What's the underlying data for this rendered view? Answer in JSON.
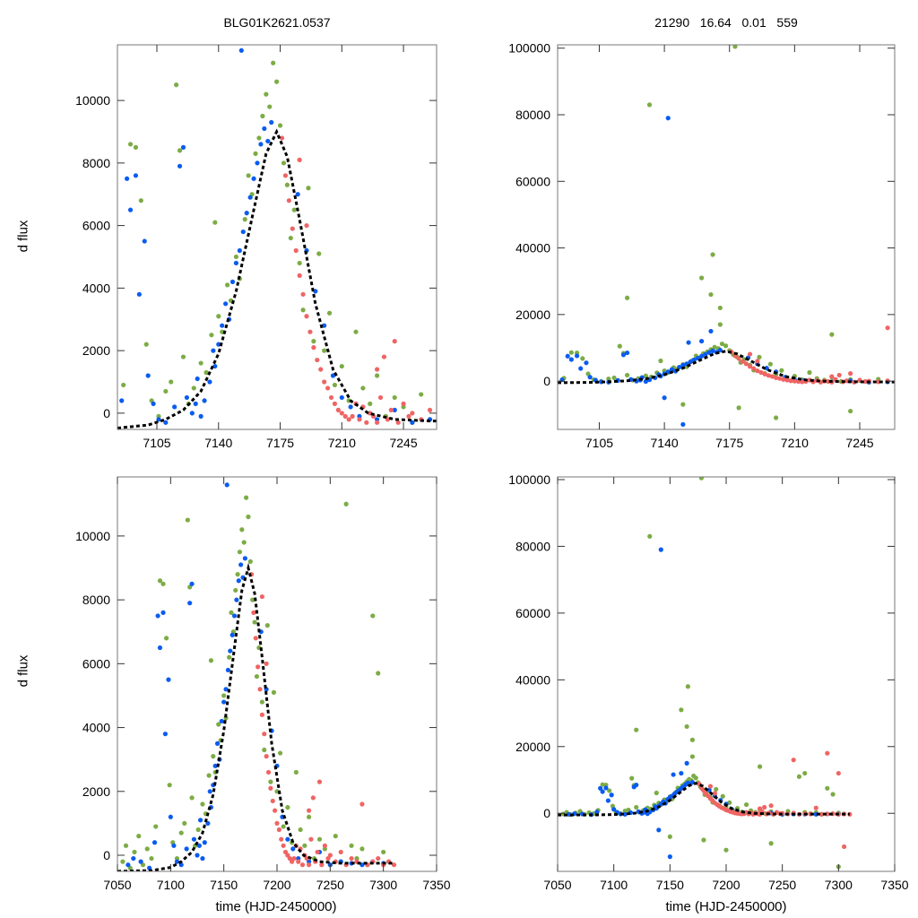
{
  "chart_data": {
    "type": "scatter",
    "titles": {
      "left": "BLG01K2621.0537",
      "right": "21290   16.64   0.01   559"
    },
    "ylabel": "d flux",
    "xlabel": "time (HJD-2450000)",
    "colors": {
      "green": "#7cac45",
      "blue": "#0a5cf0",
      "red": "#f06464",
      "model": "#000000"
    },
    "panels": [
      {
        "name": "top-left",
        "xlim": [
          7082.6,
          7263.8
        ],
        "ylim": [
          -520,
          11780
        ],
        "xticks": [
          7105,
          7140,
          7175,
          7210,
          7245
        ],
        "yticks": [
          0,
          2000,
          4000,
          6000,
          8000,
          10000
        ]
      },
      {
        "name": "top-right",
        "xlim": [
          7082.6,
          7263.8
        ],
        "ylim": [
          -14500,
          101000
        ],
        "xticks": [
          7105,
          7140,
          7175,
          7210,
          7245
        ],
        "yticks": [
          0,
          20000,
          40000,
          60000,
          80000,
          100000
        ]
      },
      {
        "name": "bottom-left",
        "xlim": [
          7050,
          7350
        ],
        "ylim": [
          -505,
          11850
        ],
        "xticks": [
          7050,
          7100,
          7150,
          7200,
          7250,
          7300,
          7350
        ],
        "yticks": [
          0,
          2000,
          4000,
          6000,
          8000,
          10000
        ]
      },
      {
        "name": "bottom-right",
        "xlim": [
          7050,
          7350
        ],
        "ylim": [
          -17400,
          100800
        ],
        "xticks": [
          7050,
          7100,
          7150,
          7200,
          7250,
          7300,
          7350
        ],
        "yticks": [
          0,
          20000,
          40000,
          60000,
          80000,
          100000
        ]
      }
    ],
    "model": [
      [
        7050,
        -500
      ],
      [
        7082,
        -480
      ],
      [
        7100,
        -380
      ],
      [
        7110,
        -200
      ],
      [
        7120,
        100
      ],
      [
        7130,
        700
      ],
      [
        7140,
        1900
      ],
      [
        7150,
        3900
      ],
      [
        7160,
        6500
      ],
      [
        7167,
        8300
      ],
      [
        7173,
        9000
      ],
      [
        7179,
        8200
      ],
      [
        7186,
        6200
      ],
      [
        7195,
        3500
      ],
      [
        7205,
        1400
      ],
      [
        7215,
        400
      ],
      [
        7225,
        0
      ],
      [
        7240,
        -200
      ],
      [
        7260,
        -250
      ],
      [
        7310,
        -250
      ]
    ],
    "series": [
      {
        "name": "green",
        "points": [
          [
            7055,
            -200
          ],
          [
            7058,
            300
          ],
          [
            7062,
            -400
          ],
          [
            7066,
            100
          ],
          [
            7070,
            600
          ],
          [
            7074,
            -300
          ],
          [
            7078,
            200
          ],
          [
            7082,
            -100
          ],
          [
            7086,
            900
          ],
          [
            7090,
            8600
          ],
          [
            7093,
            8500
          ],
          [
            7096,
            6800
          ],
          [
            7099,
            2200
          ],
          [
            7102,
            400
          ],
          [
            7106,
            -100
          ],
          [
            7110,
            700
          ],
          [
            7113,
            1000
          ],
          [
            7116,
            10500
          ],
          [
            7118,
            8400
          ],
          [
            7120,
            1800
          ],
          [
            7123,
            300
          ],
          [
            7126,
            800
          ],
          [
            7130,
            1600
          ],
          [
            7133,
            1300
          ],
          [
            7136,
            2500
          ],
          [
            7138,
            6100
          ],
          [
            7140,
            3100
          ],
          [
            7142,
            2600
          ],
          [
            7145,
            4100
          ],
          [
            7147,
            3600
          ],
          [
            7150,
            5000
          ],
          [
            7152,
            4300
          ],
          [
            7155,
            6200
          ],
          [
            7157,
            7600
          ],
          [
            7159,
            7000
          ],
          [
            7161,
            8300
          ],
          [
            7163,
            8800
          ],
          [
            7165,
            9500
          ],
          [
            7167,
            10200
          ],
          [
            7169,
            9800
          ],
          [
            7171,
            11200
          ],
          [
            7173,
            10600
          ],
          [
            7175,
            9200
          ],
          [
            7177,
            8000
          ],
          [
            7179,
            7300
          ],
          [
            7181,
            5600
          ],
          [
            7183,
            6500
          ],
          [
            7186,
            4800
          ],
          [
            7188,
            3300
          ],
          [
            7191,
            7200
          ],
          [
            7194,
            2300
          ],
          [
            7197,
            5100
          ],
          [
            7200,
            2000
          ],
          [
            7203,
            3200
          ],
          [
            7206,
            900
          ],
          [
            7210,
            1500
          ],
          [
            7214,
            400
          ],
          [
            7218,
            2600
          ],
          [
            7222,
            800
          ],
          [
            7226,
            300
          ],
          [
            7230,
            1200
          ],
          [
            7235,
            -100
          ],
          [
            7240,
            500
          ],
          [
            7245,
            200
          ],
          [
            7250,
            -300
          ],
          [
            7255,
            600
          ],
          [
            7260,
            -200
          ],
          [
            7265,
            11000
          ],
          [
            7270,
            300
          ],
          [
            7275,
            -100
          ],
          [
            7280,
            200
          ],
          [
            7285,
            -300
          ],
          [
            7290,
            7500
          ],
          [
            7295,
            5700
          ],
          [
            7300,
            100
          ],
          [
            7305,
            -200
          ],
          [
            7132,
            83000
          ],
          [
            7178,
            100500
          ],
          [
            7166,
            38000
          ],
          [
            7160,
            31000
          ],
          [
            7120,
            25000
          ],
          [
            7170,
            17000
          ],
          [
            7180,
            -8000
          ],
          [
            7200,
            -11000
          ],
          [
            7240,
            -9000
          ],
          [
            7300,
            -16000
          ],
          [
            7230,
            14000
          ],
          [
            7270,
            12000
          ],
          [
            7150,
            -7000
          ],
          [
            7165,
            26000
          ],
          [
            7170,
            22000
          ]
        ]
      },
      {
        "name": "blue",
        "points": [
          [
            7060,
            -300
          ],
          [
            7065,
            -100
          ],
          [
            7072,
            -200
          ],
          [
            7080,
            -400
          ],
          [
            7085,
            400
          ],
          [
            7088,
            7500
          ],
          [
            7090,
            6500
          ],
          [
            7093,
            7600
          ],
          [
            7095,
            3800
          ],
          [
            7098,
            5500
          ],
          [
            7100,
            1200
          ],
          [
            7103,
            300
          ],
          [
            7106,
            -200
          ],
          [
            7110,
            -300
          ],
          [
            7115,
            200
          ],
          [
            7118,
            7900
          ],
          [
            7120,
            8500
          ],
          [
            7122,
            500
          ],
          [
            7125,
            0
          ],
          [
            7127,
            300
          ],
          [
            7128,
            1100
          ],
          [
            7130,
            -100
          ],
          [
            7132,
            400
          ],
          [
            7135,
            1000
          ],
          [
            7137,
            2000
          ],
          [
            7138,
            1500
          ],
          [
            7140,
            2200
          ],
          [
            7142,
            2800
          ],
          [
            7144,
            3500
          ],
          [
            7146,
            3000
          ],
          [
            7148,
            4200
          ],
          [
            7150,
            4800
          ],
          [
            7152,
            5200
          ],
          [
            7153,
            11600
          ],
          [
            7154,
            5800
          ],
          [
            7156,
            6400
          ],
          [
            7158,
            6900
          ],
          [
            7160,
            7500
          ],
          [
            7162,
            8000
          ],
          [
            7164,
            8600
          ],
          [
            7166,
            9100
          ],
          [
            7168,
            8700
          ],
          [
            7170,
            9300
          ],
          [
            7185,
            7000
          ],
          [
            7190,
            5200
          ],
          [
            7195,
            3900
          ],
          [
            7200,
            2800
          ],
          [
            7205,
            1200
          ],
          [
            7210,
            500
          ],
          [
            7215,
            200
          ],
          [
            7220,
            -100
          ],
          [
            7230,
            -200
          ],
          [
            7240,
            100
          ],
          [
            7250,
            -300
          ],
          [
            7260,
            -200
          ],
          [
            7270,
            -250
          ],
          [
            7280,
            -300
          ],
          [
            7290,
            -200
          ],
          [
            7300,
            -250
          ],
          [
            7142,
            79000
          ],
          [
            7150,
            -13000
          ],
          [
            7140,
            -5000
          ],
          [
            7160,
            12000
          ],
          [
            7165,
            15000
          ]
        ]
      },
      {
        "name": "red",
        "points": [
          [
            7176,
            8800
          ],
          [
            7178,
            7600
          ],
          [
            7180,
            6800
          ],
          [
            7182,
            5900
          ],
          [
            7184,
            5200
          ],
          [
            7186,
            4400
          ],
          [
            7188,
            3800
          ],
          [
            7190,
            3100
          ],
          [
            7192,
            2600
          ],
          [
            7194,
            2100
          ],
          [
            7196,
            1700
          ],
          [
            7198,
            1400
          ],
          [
            7200,
            1000
          ],
          [
            7202,
            800
          ],
          [
            7204,
            500
          ],
          [
            7206,
            300
          ],
          [
            7208,
            100
          ],
          [
            7210,
            0
          ],
          [
            7212,
            -100
          ],
          [
            7214,
            -200
          ],
          [
            7216,
            -100
          ],
          [
            7218,
            300
          ],
          [
            7220,
            -200
          ],
          [
            7222,
            200
          ],
          [
            7224,
            -300
          ],
          [
            7226,
            0
          ],
          [
            7228,
            -100
          ],
          [
            7230,
            -300
          ],
          [
            7232,
            500
          ],
          [
            7234,
            1800
          ],
          [
            7236,
            -200
          ],
          [
            7238,
            100
          ],
          [
            7240,
            2300
          ],
          [
            7242,
            -300
          ],
          [
            7245,
            300
          ],
          [
            7248,
            -100
          ],
          [
            7250,
            0
          ],
          [
            7255,
            -200
          ],
          [
            7260,
            100
          ],
          [
            7265,
            -300
          ],
          [
            7270,
            -100
          ],
          [
            7275,
            -200
          ],
          [
            7280,
            1600
          ],
          [
            7285,
            -300
          ],
          [
            7290,
            -200
          ],
          [
            7295,
            -100
          ],
          [
            7300,
            -300
          ],
          [
            7305,
            -200
          ],
          [
            7310,
            -300
          ],
          [
            7190,
            6000
          ],
          [
            7186,
            8100
          ],
          [
            7230,
            1400
          ],
          [
            7290,
            18000
          ],
          [
            7300,
            12000
          ],
          [
            7260,
            16000
          ],
          [
            7305,
            -10000
          ]
        ]
      }
    ]
  }
}
